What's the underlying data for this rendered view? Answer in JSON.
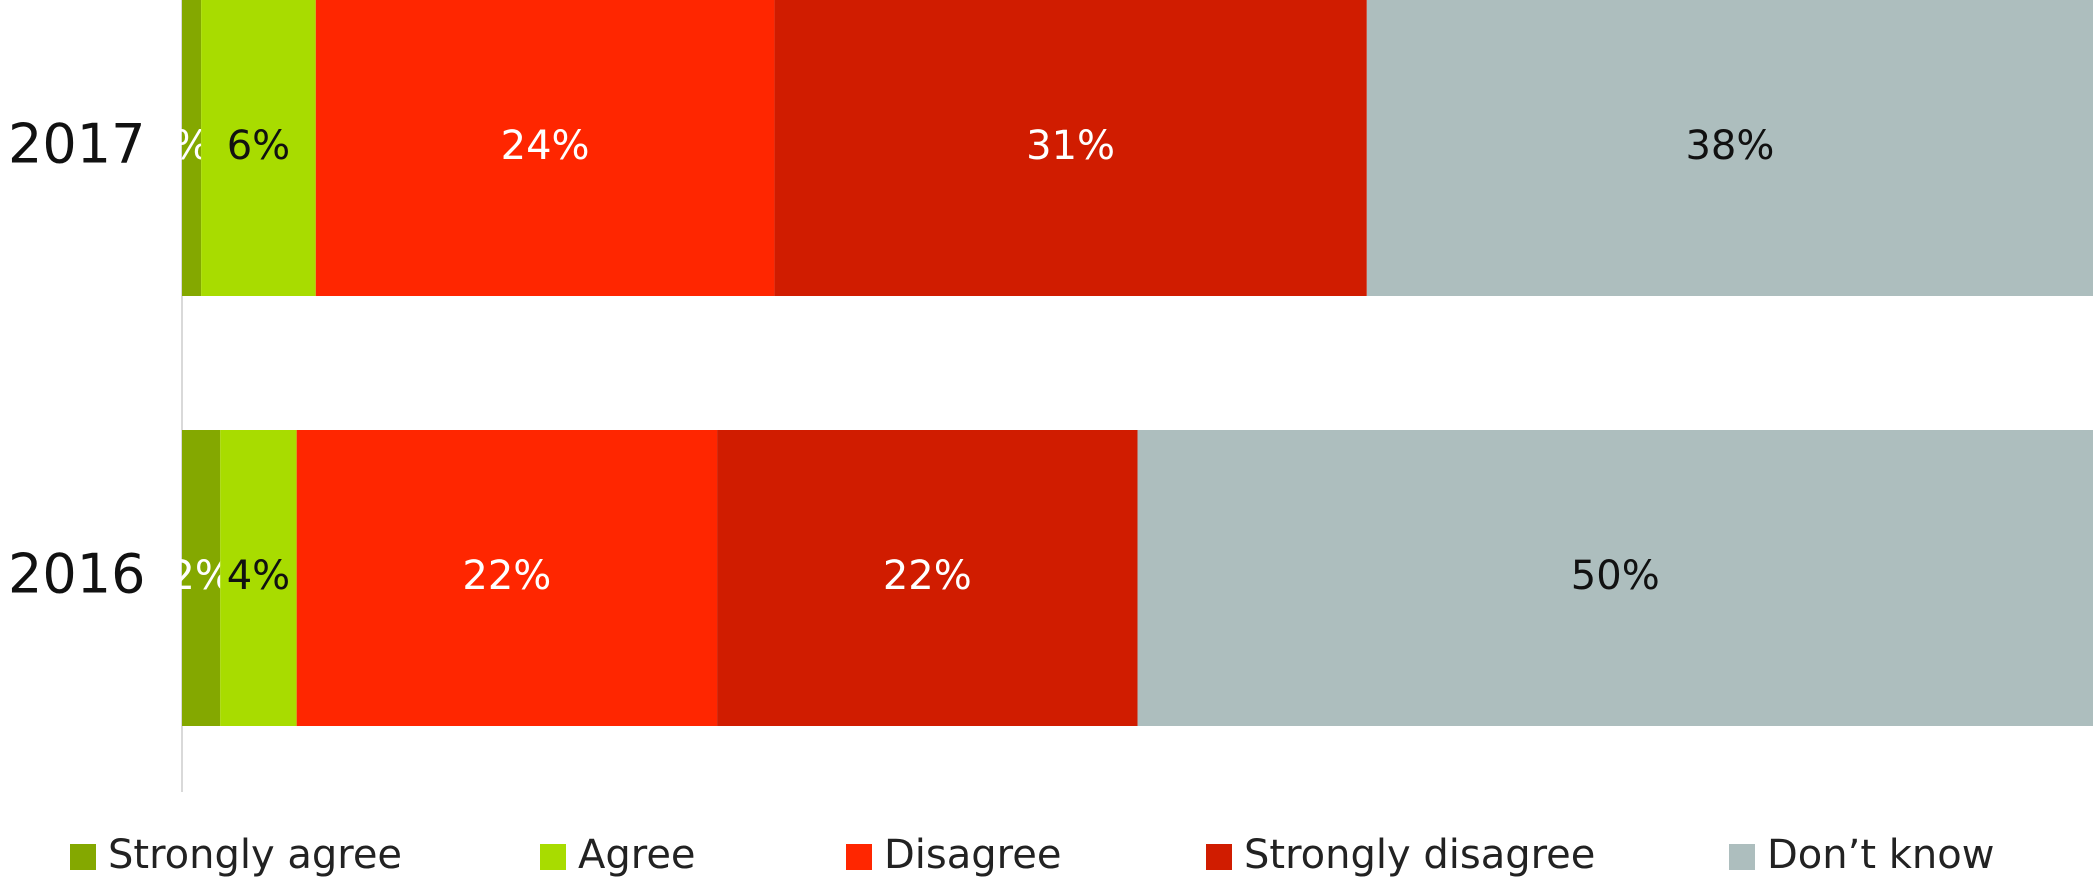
{
  "chart_data": {
    "type": "bar",
    "orientation": "horizontal",
    "stacked": true,
    "categories": [
      "2017",
      "2016"
    ],
    "series": [
      {
        "name": "Strongly agree",
        "color": "#84A800",
        "values": [
          1,
          2
        ],
        "labels": [
          "%",
          "2%"
        ],
        "label_color": "#ffffff"
      },
      {
        "name": "Agree",
        "color": "#A8DC00",
        "values": [
          6,
          4
        ],
        "labels": [
          "6%",
          "4%"
        ],
        "label_color": "#111111"
      },
      {
        "name": "Disagree",
        "color": "#FF2600",
        "values": [
          24,
          22
        ],
        "labels": [
          "24%",
          "22%"
        ],
        "label_color": "#ffffff"
      },
      {
        "name": "Strongly disagree",
        "color": "#D01C00",
        "values": [
          31,
          22
        ],
        "labels": [
          "31%",
          "22%"
        ],
        "label_color": "#ffffff"
      },
      {
        "name": "Don’t know",
        "color": "#ADBEBE",
        "values": [
          38,
          50
        ],
        "labels": [
          "38%",
          "50%"
        ],
        "label_color": "#111111"
      }
    ],
    "xlim": [
      0,
      100
    ],
    "grid": false,
    "legend": "bottom"
  }
}
